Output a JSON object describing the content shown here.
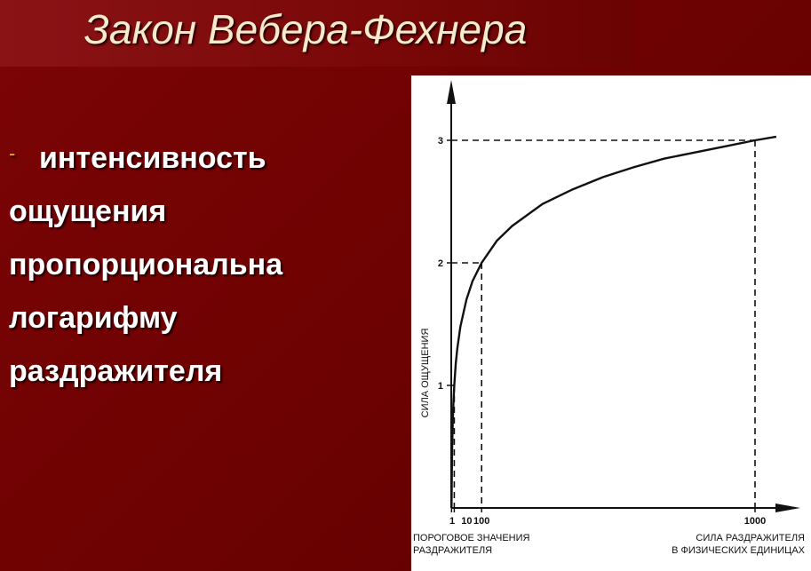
{
  "slide": {
    "title": "Закон Вебера-Фехнера",
    "bullet_marker": "-",
    "bullet_lines": [
      "интенсивность",
      "ощущения",
      "пропорциональна",
      "логарифму",
      "раздражителя"
    ]
  },
  "colors": {
    "background": "#700303",
    "title_text": "#f4eccd",
    "body_text": "#ffffff",
    "bullet_marker": "#e0b030",
    "chart_panel": "#ffffff"
  },
  "chart_data": {
    "type": "line",
    "title": "",
    "ylabel": "СИЛА ОЩУЩЕНИЯ",
    "xlabel": "СИЛА РАЗДРАЖИТЕЛЯ В ФИЗИЧЕСКИХ ЕДИНИЦАХ",
    "x_scale": "linear",
    "x_ticks": [
      1,
      10,
      100,
      1000
    ],
    "x_tick_labels": [
      "1",
      "10",
      "100",
      "1000"
    ],
    "y_ticks": [
      1,
      2,
      3
    ],
    "y_tick_labels": [
      "1",
      "2",
      "3"
    ],
    "series": [
      {
        "x": [
          1,
          2,
          3,
          5,
          7,
          10,
          15,
          20,
          30,
          50,
          70,
          100,
          150,
          200,
          300,
          400,
          500,
          600,
          700,
          800,
          900,
          1000,
          1070
        ],
        "y": [
          0,
          0.3,
          0.48,
          0.7,
          0.85,
          1.0,
          1.18,
          1.3,
          1.48,
          1.7,
          1.85,
          2.0,
          2.18,
          2.3,
          2.48,
          2.6,
          2.7,
          2.78,
          2.85,
          2.9,
          2.95,
          3.0,
          3.03
        ]
      }
    ],
    "reference_lines": [
      {
        "x": 10,
        "y": 1
      },
      {
        "x": 100,
        "y": 2
      },
      {
        "x": 1000,
        "y": 3
      }
    ],
    "notes": {
      "threshold_line1": "ПОРОГОВОЕ ЗНАЧЕНИЯ",
      "threshold_line2": "РАЗДРАЖИТЕЛЯ",
      "x_caption_line1": "СИЛА РАЗДРАЖИТЕЛЯ",
      "x_caption_line2": "В ФИЗИЧЕСКИХ ЕДИНИЦАХ"
    },
    "grid": false,
    "legend": "none"
  }
}
